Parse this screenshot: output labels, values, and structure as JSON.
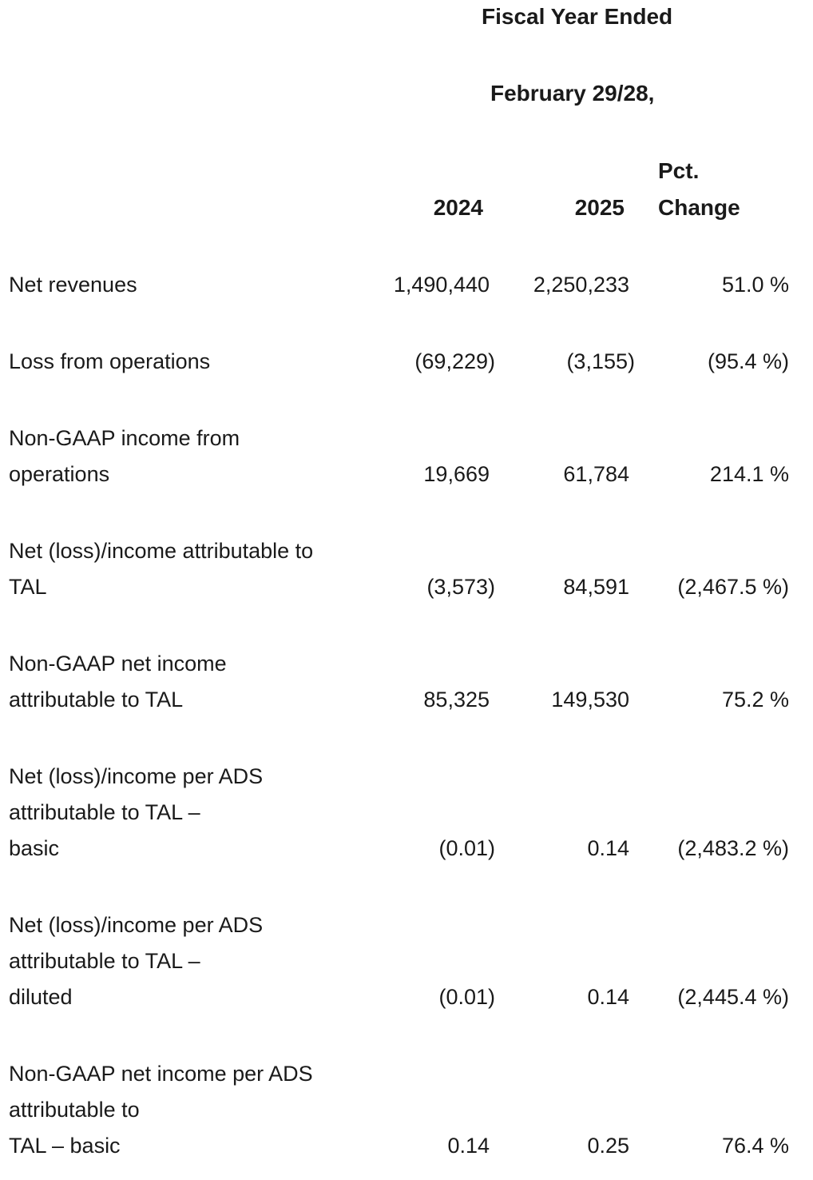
{
  "header": {
    "line1": "Fiscal Year Ended",
    "line2": "February 29/28,"
  },
  "columns": {
    "y2024": "2024",
    "y2025": "2025",
    "pct_line1": "Pct.",
    "pct_line2": "Change"
  },
  "rows": [
    {
      "label": "Net revenues",
      "v2024": "1,490,440",
      "v2025": "2,250,233",
      "pct": "51.0 %"
    },
    {
      "label": "Loss from operations",
      "v2024": "(69,229)",
      "v2025": "(3,155)",
      "pct": "(95.4 %)"
    },
    {
      "label": "Non-GAAP income from\noperations",
      "v2024": "19,669",
      "v2025": "61,784",
      "pct": "214.1 %"
    },
    {
      "label": "Net (loss)/income attributable to\nTAL",
      "v2024": "(3,573)",
      "v2025": "84,591",
      "pct": "(2,467.5 %)"
    },
    {
      "label": "Non-GAAP net income\nattributable to TAL",
      "v2024": "85,325",
      "v2025": "149,530",
      "pct": "75.2 %"
    },
    {
      "label": "Net (loss)/income per ADS\nattributable to TAL –\nbasic",
      "v2024": "(0.01)",
      "v2025": "0.14",
      "pct": "(2,483.2 %)"
    },
    {
      "label": "Net (loss)/income per ADS\nattributable to TAL –\ndiluted",
      "v2024": "(0.01)",
      "v2025": "0.14",
      "pct": "(2,445.4 %)"
    },
    {
      "label": "Non-GAAP net income per ADS\nattributable to\nTAL – basic",
      "v2024": "0.14",
      "v2025": "0.25",
      "pct": "76.4 %"
    }
  ]
}
